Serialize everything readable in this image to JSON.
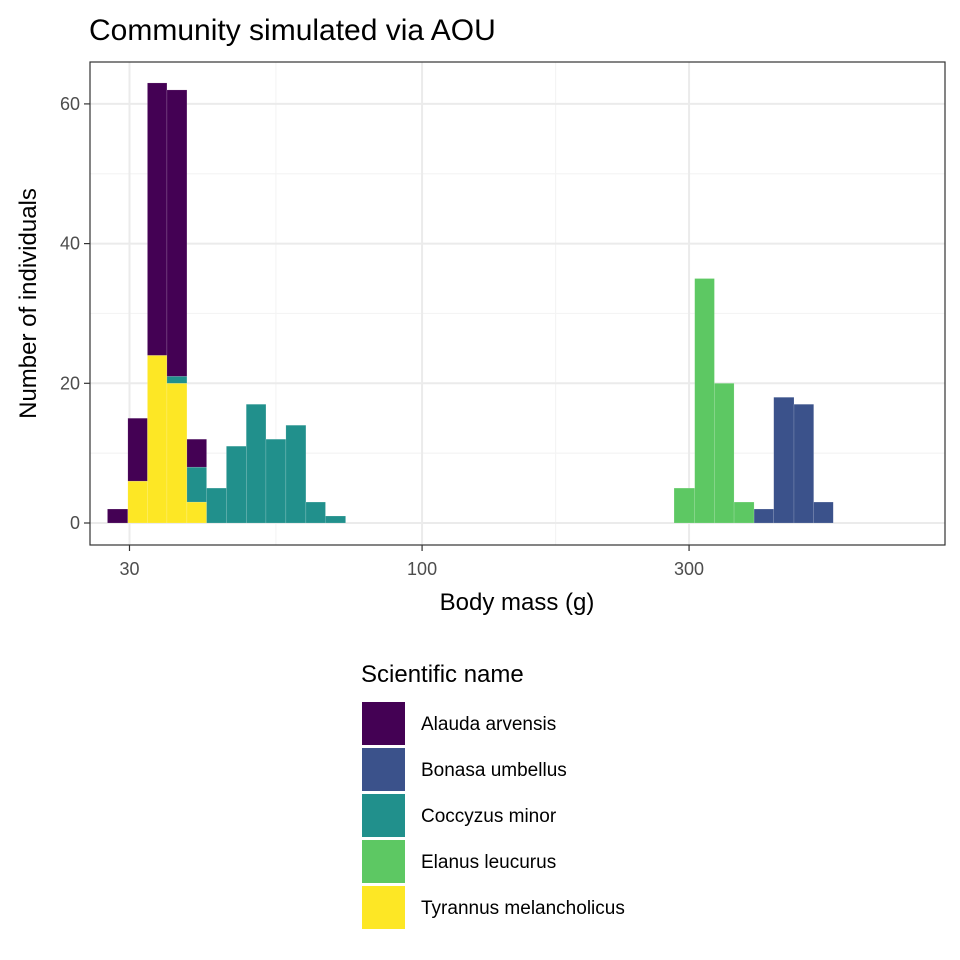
{
  "chart_data": {
    "type": "bar",
    "title": "Community simulated via AOU",
    "xlabel": "Body mass (g)",
    "ylabel": "Number of individuals",
    "x_scale": "log10",
    "xlim": [
      25.5,
      860
    ],
    "ylim": [
      -3.15,
      66
    ],
    "x_ticks": [
      30,
      100,
      300
    ],
    "x_tick_labels": [
      "30",
      "100",
      "300"
    ],
    "x_minor_ticks": [
      54.8,
      173.2
    ],
    "y_ticks": [
      0,
      20,
      40,
      60
    ],
    "y_tick_labels": [
      "0",
      "20",
      "40",
      "60"
    ],
    "y_minor_ticks": [
      10,
      30,
      50
    ],
    "grid": true,
    "stacked": true,
    "series_order": [
      "Tyrannus melancholicus",
      "Coccyzus minor",
      "Alauda arvensis",
      "Bonasa umbellus",
      "Elanus leucurus"
    ],
    "legend": {
      "title": "Scientific name",
      "placement": "bottom",
      "items": [
        {
          "name": "Alauda arvensis",
          "color": "#440154"
        },
        {
          "name": "Bonasa umbellus",
          "color": "#3B528B"
        },
        {
          "name": "Coccyzus minor",
          "color": "#21908C"
        },
        {
          "name": "Elanus leucurus",
          "color": "#5DC863"
        },
        {
          "name": "Tyrannus melancholicus",
          "color": "#FDE725"
        }
      ]
    },
    "bins": [
      {
        "x0": 27.4,
        "x1": 29.8,
        "counts": {
          "Alauda arvensis": 2
        }
      },
      {
        "x0": 29.8,
        "x1": 32.3,
        "counts": {
          "Tyrannus melancholicus": 6,
          "Alauda arvensis": 9
        }
      },
      {
        "x0": 32.3,
        "x1": 35.0,
        "counts": {
          "Tyrannus melancholicus": 24,
          "Alauda arvensis": 39
        }
      },
      {
        "x0": 35.0,
        "x1": 38.0,
        "counts": {
          "Tyrannus melancholicus": 20,
          "Coccyzus minor": 1,
          "Alauda arvensis": 41
        }
      },
      {
        "x0": 38.0,
        "x1": 41.2,
        "counts": {
          "Tyrannus melancholicus": 3,
          "Coccyzus minor": 5,
          "Alauda arvensis": 4
        }
      },
      {
        "x0": 41.2,
        "x1": 44.7,
        "counts": {
          "Coccyzus minor": 5
        }
      },
      {
        "x0": 44.7,
        "x1": 48.5,
        "counts": {
          "Coccyzus minor": 11
        }
      },
      {
        "x0": 48.5,
        "x1": 52.6,
        "counts": {
          "Coccyzus minor": 17
        }
      },
      {
        "x0": 52.6,
        "x1": 57.1,
        "counts": {
          "Coccyzus minor": 12
        }
      },
      {
        "x0": 57.1,
        "x1": 62.0,
        "counts": {
          "Coccyzus minor": 14
        }
      },
      {
        "x0": 62.0,
        "x1": 67.2,
        "counts": {
          "Coccyzus minor": 3
        }
      },
      {
        "x0": 67.2,
        "x1": 73.0,
        "counts": {
          "Coccyzus minor": 1
        }
      },
      {
        "x0": 282,
        "x1": 307,
        "counts": {
          "Elanus leucurus": 5
        }
      },
      {
        "x0": 307,
        "x1": 333,
        "counts": {
          "Elanus leucurus": 35
        }
      },
      {
        "x0": 333,
        "x1": 361,
        "counts": {
          "Elanus leucurus": 20
        }
      },
      {
        "x0": 361,
        "x1": 392,
        "counts": {
          "Elanus leucurus": 3
        }
      },
      {
        "x0": 392,
        "x1": 425,
        "counts": {
          "Bonasa umbellus": 2
        }
      },
      {
        "x0": 425,
        "x1": 462,
        "counts": {
          "Bonasa umbellus": 18
        }
      },
      {
        "x0": 462,
        "x1": 501,
        "counts": {
          "Bonasa umbellus": 17
        }
      },
      {
        "x0": 501,
        "x1": 543,
        "counts": {
          "Bonasa umbellus": 3
        }
      }
    ]
  }
}
